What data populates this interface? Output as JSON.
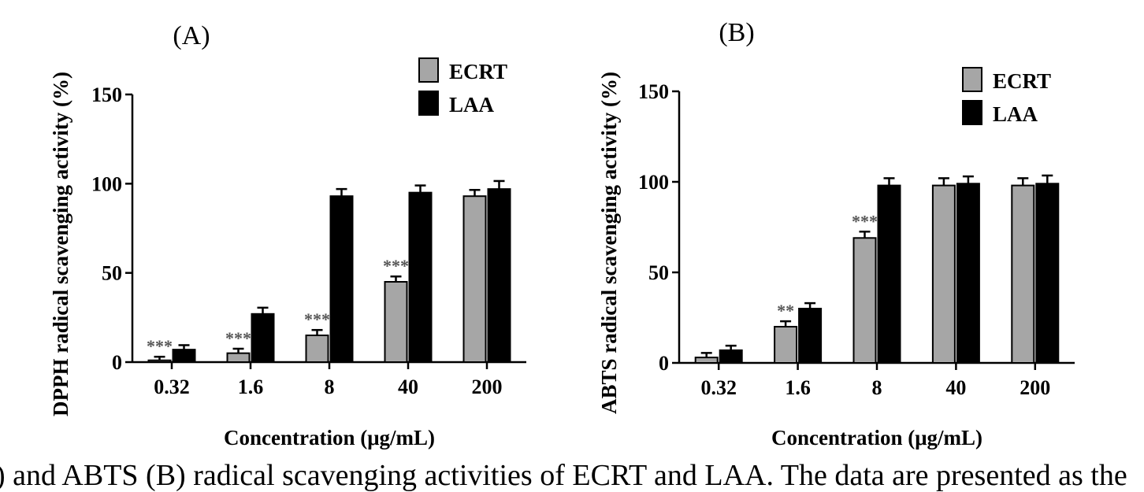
{
  "caption": ") and ABTS (B) radical scavenging activities of ECRT and LAA. The data are presented as the",
  "chart_data": [
    {
      "type": "bar",
      "panel_label": "(A)",
      "categories": [
        "0.32",
        "1.6",
        "8",
        "40",
        "200"
      ],
      "series": [
        {
          "name": "ECRT",
          "color": "#a6a6a6",
          "values": [
            1,
            5,
            15,
            45,
            93
          ],
          "errors": [
            2,
            2.5,
            3,
            3,
            3.5
          ]
        },
        {
          "name": "LAA",
          "color": "#000000",
          "values": [
            7,
            27,
            93,
            95,
            97
          ],
          "errors": [
            2.5,
            3.5,
            4,
            4,
            4.5
          ]
        }
      ],
      "significance": [
        "***",
        "***",
        "***",
        "***",
        ""
      ],
      "xlabel": "Concentration (μg/mL)",
      "ylabel": "DPPH radical scavenging activity (%)",
      "ylim": [
        0,
        150
      ],
      "yticks": [
        "0",
        "50",
        "100",
        "150"
      ],
      "legend_position": "top-right"
    },
    {
      "type": "bar",
      "panel_label": "(B)",
      "categories": [
        "0.32",
        "1.6",
        "8",
        "40",
        "200"
      ],
      "series": [
        {
          "name": "ECRT",
          "color": "#a6a6a6",
          "values": [
            3,
            20,
            69,
            98,
            98
          ],
          "errors": [
            2.5,
            3,
            3.5,
            4,
            4
          ]
        },
        {
          "name": "LAA",
          "color": "#000000",
          "values": [
            7,
            30,
            98,
            99,
            99
          ],
          "errors": [
            2.5,
            3,
            4,
            4,
            4.5
          ]
        }
      ],
      "significance": [
        "",
        "**",
        "***",
        "",
        ""
      ],
      "xlabel": "Concentration (μg/mL)",
      "ylabel": "ABTS radical scavenging activity (%)",
      "ylim": [
        0,
        150
      ],
      "yticks": [
        "0",
        "50",
        "100",
        "150"
      ],
      "legend_position": "top-right"
    }
  ]
}
